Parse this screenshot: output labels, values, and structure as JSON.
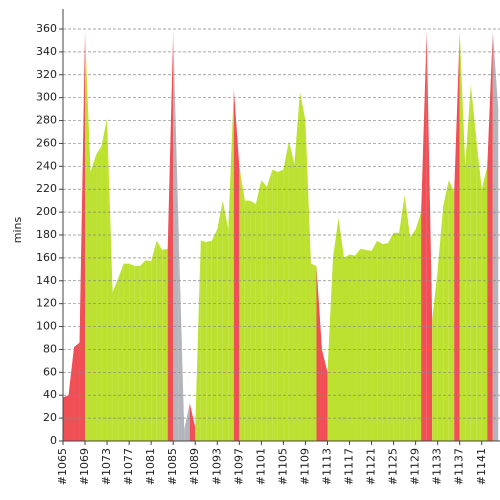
{
  "chart_data": {
    "type": "area",
    "ylabel": "mins",
    "categories": [
      "#1065",
      null,
      null,
      null,
      "#1069",
      null,
      null,
      null,
      "#1073",
      null,
      null,
      null,
      "#1077",
      null,
      null,
      null,
      "#1081",
      null,
      null,
      null,
      "#1085",
      null,
      null,
      null,
      "#1089",
      null,
      null,
      null,
      "#1093",
      null,
      null,
      null,
      "#1097",
      null,
      null,
      null,
      "#1101",
      null,
      null,
      null,
      "#1105",
      null,
      null,
      null,
      "#1109",
      null,
      null,
      null,
      "#1113",
      null,
      null,
      null,
      "#1117",
      null,
      null,
      null,
      "#1121",
      null,
      null,
      null,
      "#1125",
      null,
      null,
      null,
      "#1129",
      null,
      null,
      null,
      "#1133",
      null,
      null,
      null,
      "#1137",
      null,
      null,
      null,
      "#1141",
      null,
      null,
      null
    ],
    "values": [
      38,
      40,
      82,
      86,
      358,
      235,
      250,
      258,
      282,
      130,
      142,
      155,
      155,
      153,
      153,
      158,
      157,
      175,
      167,
      168,
      358,
      180,
      10,
      33,
      12,
      175,
      174,
      175,
      185,
      210,
      185,
      308,
      240,
      210,
      210,
      207,
      228,
      222,
      237,
      235,
      237,
      262,
      242,
      305,
      280,
      155,
      153,
      80,
      60,
      160,
      195,
      160,
      163,
      162,
      168,
      167,
      166,
      175,
      172,
      173,
      182,
      182,
      215,
      178,
      185,
      200,
      358,
      105,
      150,
      205,
      228,
      218,
      358,
      240,
      312,
      265,
      220,
      240,
      358,
      290
    ],
    "colors": [
      "#ef4f55",
      "#ef4f55",
      "#ef4f55",
      "#ef4f55",
      "#ef4f55",
      "#bce131",
      "#bce131",
      "#bce131",
      "#bce131",
      "#bce131",
      "#bce131",
      "#bce131",
      "#bce131",
      "#bce131",
      "#bce131",
      "#bce131",
      "#bce131",
      "#bce131",
      "#bce131",
      "#bce131",
      "#ef4f55",
      "#b4b4bc",
      "#b4b4bc",
      "#b4b4bc",
      "#ef4f55",
      "#bce131",
      "#bce131",
      "#bce131",
      "#bce131",
      "#bce131",
      "#bce131",
      "#bce131",
      "#ef4f55",
      "#bce131",
      "#bce131",
      "#bce131",
      "#bce131",
      "#bce131",
      "#bce131",
      "#bce131",
      "#bce131",
      "#bce131",
      "#bce131",
      "#bce131",
      "#bce131",
      "#bce131",
      "#bce131",
      "#ef4f55",
      "#ef4f55",
      "#bce131",
      "#bce131",
      "#bce131",
      "#bce131",
      "#bce131",
      "#bce131",
      "#bce131",
      "#bce131",
      "#bce131",
      "#bce131",
      "#bce131",
      "#bce131",
      "#bce131",
      "#bce131",
      "#bce131",
      "#bce131",
      "#bce131",
      "#ef4f55",
      "#ef4f55",
      "#bce131",
      "#bce131",
      "#bce131",
      "#bce131",
      "#ef4f55",
      "#bce131",
      "#bce131",
      "#bce131",
      "#bce131",
      "#bce131",
      "#ef4f55",
      "#b4b4bc"
    ],
    "ylim": [
      0,
      360
    ],
    "yticks": [
      0,
      20,
      40,
      60,
      80,
      100,
      120,
      140,
      160,
      180,
      200,
      220,
      240,
      260,
      280,
      300,
      320,
      340,
      360
    ],
    "grid": true
  }
}
